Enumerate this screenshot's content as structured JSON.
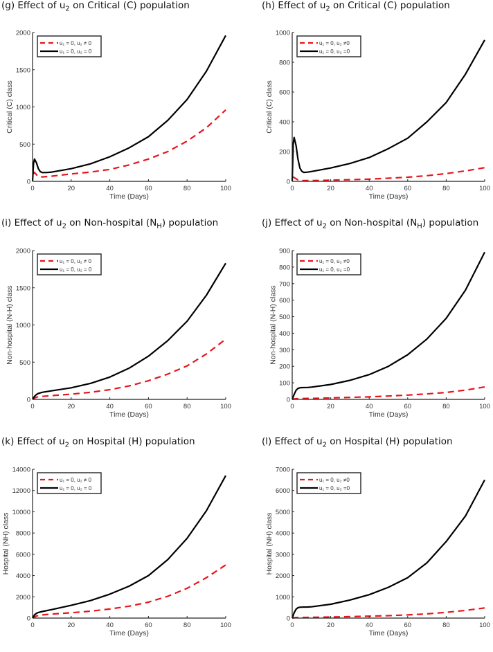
{
  "chart_data": [
    {
      "id": "g",
      "type": "line",
      "title": {
        "pre": "(g) Effect of u",
        "sub": "2",
        "mid": " on Critical (C) population",
        "sub2": "",
        "post": ""
      },
      "xlabel": "Time (Days)",
      "ylabel": "Critical (C) class",
      "xlim": [
        0,
        100
      ],
      "ylim": [
        0,
        2000
      ],
      "xticks": [
        0,
        20,
        40,
        60,
        80,
        100
      ],
      "yticks": [
        0,
        500,
        1000,
        1500,
        2000
      ],
      "grid": false,
      "legend_position": "top-left",
      "series": [
        {
          "name": "u₁ = 0, u₂ ≠ 0",
          "color": "#e8141a",
          "style": "dashed",
          "x": [
            0.3,
            1,
            2,
            3,
            5,
            10,
            20,
            30,
            40,
            50,
            60,
            70,
            80,
            90,
            100
          ],
          "y": [
            100,
            120,
            90,
            65,
            60,
            70,
            100,
            125,
            160,
            220,
            300,
            400,
            540,
            720,
            960
          ]
        },
        {
          "name": "u₁ = 0, u₂ = 0",
          "color": "#000000",
          "style": "solid",
          "x": [
            0,
            0.5,
            1,
            2,
            3,
            4,
            5,
            7,
            10,
            20,
            30,
            40,
            50,
            60,
            70,
            80,
            90,
            100
          ],
          "y": [
            0,
            240,
            300,
            250,
            170,
            130,
            118,
            118,
            125,
            170,
            235,
            330,
            450,
            600,
            820,
            1100,
            1480,
            1960
          ]
        }
      ]
    },
    {
      "id": "h",
      "type": "line",
      "title": {
        "pre": "(h) Effect of u",
        "sub": "2",
        "mid": " on Critical (C) population",
        "sub2": "",
        "post": ""
      },
      "xlabel": "Time (Days)",
      "ylabel": "Critical (C) class",
      "xlim": [
        0,
        100
      ],
      "ylim": [
        0,
        1000
      ],
      "xticks": [
        0,
        20,
        40,
        60,
        80,
        100
      ],
      "yticks": [
        0,
        200,
        400,
        600,
        800,
        1000
      ],
      "grid": false,
      "legend_position": "top-left",
      "series": [
        {
          "name": "u₁ = 0, u₂ ≠0",
          "color": "#e8141a",
          "style": "dashed",
          "x": [
            0.3,
            1,
            3,
            5,
            10,
            20,
            30,
            40,
            50,
            60,
            70,
            80,
            90,
            100
          ],
          "y": [
            30,
            25,
            10,
            5,
            5,
            8,
            11,
            15,
            21,
            28,
            38,
            52,
            70,
            92
          ]
        },
        {
          "name": "u₁ = 0, u₂ =0",
          "color": "#000000",
          "style": "solid",
          "x": [
            0,
            0.5,
            1,
            2,
            3,
            4,
            5,
            6,
            8,
            10,
            20,
            30,
            40,
            50,
            60,
            70,
            80,
            90,
            100
          ],
          "y": [
            0,
            250,
            295,
            240,
            150,
            90,
            68,
            60,
            62,
            66,
            90,
            120,
            160,
            220,
            290,
            400,
            530,
            720,
            950
          ]
        }
      ]
    },
    {
      "id": "i",
      "type": "line",
      "title": {
        "pre": "(i) Effect of u",
        "sub": "2",
        "mid": " on Non-hospital (N",
        "sub2": "H",
        "post": ") population"
      },
      "xlabel": "Time (Days)",
      "ylabel": "Non-hospital (N-H) class",
      "xlim": [
        0,
        100
      ],
      "ylim": [
        0,
        2000
      ],
      "xticks": [
        0,
        20,
        40,
        60,
        80,
        100
      ],
      "yticks": [
        0,
        500,
        1000,
        1500,
        2000
      ],
      "grid": false,
      "legend_position": "top-left",
      "series": [
        {
          "name": "u₁ = 0, u₂ ≠ 0",
          "color": "#e8141a",
          "style": "dashed",
          "x": [
            0,
            2,
            5,
            10,
            20,
            30,
            40,
            50,
            60,
            70,
            80,
            90,
            100
          ],
          "y": [
            0,
            30,
            40,
            50,
            70,
            95,
            130,
            180,
            250,
            340,
            450,
            610,
            810
          ]
        },
        {
          "name": "u₁ = 0, u₂ = 0",
          "color": "#000000",
          "style": "solid",
          "x": [
            0,
            1,
            2,
            3,
            5,
            10,
            20,
            30,
            40,
            50,
            60,
            70,
            80,
            90,
            100
          ],
          "y": [
            0,
            40,
            65,
            80,
            95,
            115,
            155,
            215,
            300,
            420,
            580,
            790,
            1050,
            1400,
            1830
          ]
        }
      ]
    },
    {
      "id": "j",
      "type": "line",
      "title": {
        "pre": "(j) Effect of u",
        "sub": "2",
        "mid": " on Non-hospital (N",
        "sub2": "H",
        "post": ") population"
      },
      "xlabel": "Time (Days)",
      "ylabel": "Non-hospital (N-H) class",
      "xlim": [
        0,
        100
      ],
      "ylim": [
        0,
        900
      ],
      "xticks": [
        0,
        20,
        40,
        60,
        80,
        100
      ],
      "yticks": [
        0,
        100,
        200,
        300,
        400,
        500,
        600,
        700,
        800,
        900
      ],
      "grid": false,
      "legend_position": "top-left",
      "series": [
        {
          "name": "u₁ = 0, u₂ ≠0",
          "color": "#e8141a",
          "style": "dashed",
          "x": [
            0,
            2,
            5,
            10,
            20,
            30,
            40,
            50,
            60,
            70,
            80,
            90,
            100
          ],
          "y": [
            0,
            4,
            5,
            6,
            9,
            12,
            15,
            20,
            26,
            33,
            42,
            56,
            75
          ]
        },
        {
          "name": "u₁ = 0, u₂ =0",
          "color": "#000000",
          "style": "solid",
          "x": [
            0,
            1,
            2,
            3,
            4,
            5,
            8,
            10,
            20,
            30,
            40,
            50,
            60,
            70,
            80,
            90,
            100
          ],
          "y": [
            0,
            30,
            55,
            66,
            70,
            71,
            72,
            74,
            90,
            115,
            150,
            200,
            270,
            365,
            490,
            660,
            890
          ]
        }
      ]
    },
    {
      "id": "k",
      "type": "line",
      "title": {
        "pre": "(k) Effect of u",
        "sub": "2",
        "mid": " on Hospital (H) population",
        "sub2": "",
        "post": ""
      },
      "xlabel": "Time (Days)",
      "ylabel": "Hospital (NH) class",
      "xlim": [
        0,
        100
      ],
      "ylim": [
        0,
        14000
      ],
      "xticks": [
        0,
        20,
        40,
        60,
        80,
        100
      ],
      "yticks": [
        0,
        2000,
        4000,
        6000,
        8000,
        10000,
        12000,
        14000
      ],
      "grid": false,
      "legend_position": "top-left",
      "series": [
        {
          "name": "u₁ = 0, u₂ ≠ 0",
          "color": "#e8141a",
          "style": "dashed",
          "x": [
            0,
            2,
            5,
            10,
            20,
            30,
            40,
            50,
            60,
            70,
            80,
            90,
            100
          ],
          "y": [
            0,
            200,
            300,
            380,
            500,
            650,
            850,
            1120,
            1500,
            2050,
            2800,
            3800,
            5000
          ]
        },
        {
          "name": "u₁ = 0, u₂ = 0",
          "color": "#000000",
          "style": "solid",
          "x": [
            0,
            1,
            2,
            3,
            5,
            10,
            20,
            30,
            40,
            50,
            60,
            70,
            80,
            90,
            100
          ],
          "y": [
            0,
            300,
            450,
            530,
            620,
            800,
            1200,
            1650,
            2250,
            3000,
            4000,
            5500,
            7500,
            10100,
            13400
          ]
        }
      ]
    },
    {
      "id": "l",
      "type": "line",
      "title": {
        "pre": "(l) Effect of u",
        "sub": "2",
        "mid": " on Hospital (H) population",
        "sub2": "",
        "post": ""
      },
      "xlabel": "Time (Days)",
      "ylabel": "Hospital (NH) class",
      "xlim": [
        0,
        100
      ],
      "ylim": [
        0,
        7000
      ],
      "xticks": [
        0,
        20,
        40,
        60,
        80,
        100
      ],
      "yticks": [
        0,
        1000,
        2000,
        3000,
        4000,
        5000,
        6000,
        7000
      ],
      "grid": false,
      "legend_position": "top-left",
      "series": [
        {
          "name": "u₁ = 0, u₂ ≠0",
          "color": "#e8141a",
          "style": "dashed",
          "x": [
            0,
            2,
            5,
            10,
            20,
            30,
            40,
            50,
            60,
            70,
            80,
            90,
            100
          ],
          "y": [
            0,
            25,
            30,
            35,
            50,
            68,
            90,
            115,
            150,
            200,
            270,
            360,
            480
          ]
        },
        {
          "name": "u₁ = 0, u₂ =0",
          "color": "#000000",
          "style": "solid",
          "x": [
            0,
            1,
            2,
            3,
            4,
            5,
            8,
            10,
            20,
            30,
            40,
            50,
            60,
            70,
            80,
            90,
            100
          ],
          "y": [
            0,
            250,
            420,
            490,
            510,
            515,
            520,
            530,
            650,
            850,
            1100,
            1450,
            1900,
            2600,
            3600,
            4800,
            6500
          ]
        }
      ]
    }
  ]
}
